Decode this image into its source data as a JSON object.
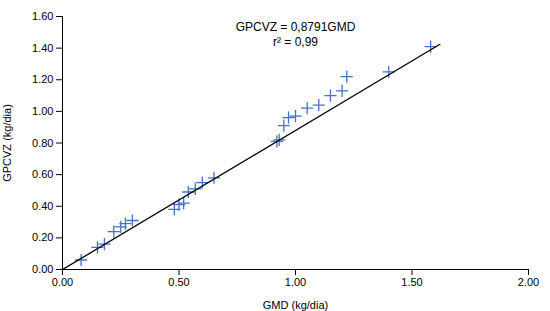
{
  "chart_data": {
    "type": "scatter",
    "xlabel": "GMD (kg/dia)",
    "ylabel": "GPCVZ (kg/dia)",
    "annotations": [
      "GPCVZ = 0,8791GMD",
      "r² = 0,99"
    ],
    "series": [
      {
        "type": "scatter",
        "color": "#4472C4",
        "marker": "+",
        "x": [
          0.08,
          0.15,
          0.18,
          0.22,
          0.25,
          0.27,
          0.3,
          0.48,
          0.5,
          0.52,
          0.54,
          0.57,
          0.6,
          0.65,
          0.92,
          0.93,
          0.95,
          0.97,
          1.0,
          1.05,
          1.1,
          1.15,
          1.2,
          1.22,
          1.4,
          1.58
        ],
        "values": [
          0.06,
          0.14,
          0.16,
          0.24,
          0.27,
          0.29,
          0.31,
          0.38,
          0.41,
          0.42,
          0.49,
          0.51,
          0.55,
          0.58,
          0.81,
          0.82,
          0.91,
          0.96,
          0.97,
          1.02,
          1.04,
          1.1,
          1.13,
          1.22,
          1.25,
          1.41
        ]
      },
      {
        "type": "line",
        "color": "#000000",
        "line_style": "solid",
        "x": [
          0.0,
          1.62
        ],
        "values": [
          0.0,
          1.424142
        ]
      }
    ],
    "xlim": [
      0.0,
      2.0
    ],
    "ylim": [
      0.0,
      1.6
    ],
    "xticks": [
      {
        "value": 0,
        "label": "0.00"
      },
      {
        "value": 0.5,
        "label": "0.50"
      },
      {
        "value": 1,
        "label": "1.00"
      },
      {
        "value": 1.5,
        "label": "1.50"
      },
      {
        "value": 2,
        "label": "2.00"
      }
    ],
    "yticks": [
      {
        "value": 0,
        "label": "0.00"
      },
      {
        "value": 0.2,
        "label": "0.20"
      },
      {
        "value": 0.4,
        "label": "0.40"
      },
      {
        "value": 0.6,
        "label": "0.60"
      },
      {
        "value": 0.8,
        "label": "0.80"
      },
      {
        "value": 1,
        "label": "1.00"
      },
      {
        "value": 1.2,
        "label": "1.20"
      },
      {
        "value": 1.4,
        "label": "1.40"
      },
      {
        "value": 1.6,
        "label": "1.60"
      }
    ],
    "grid": false
  }
}
